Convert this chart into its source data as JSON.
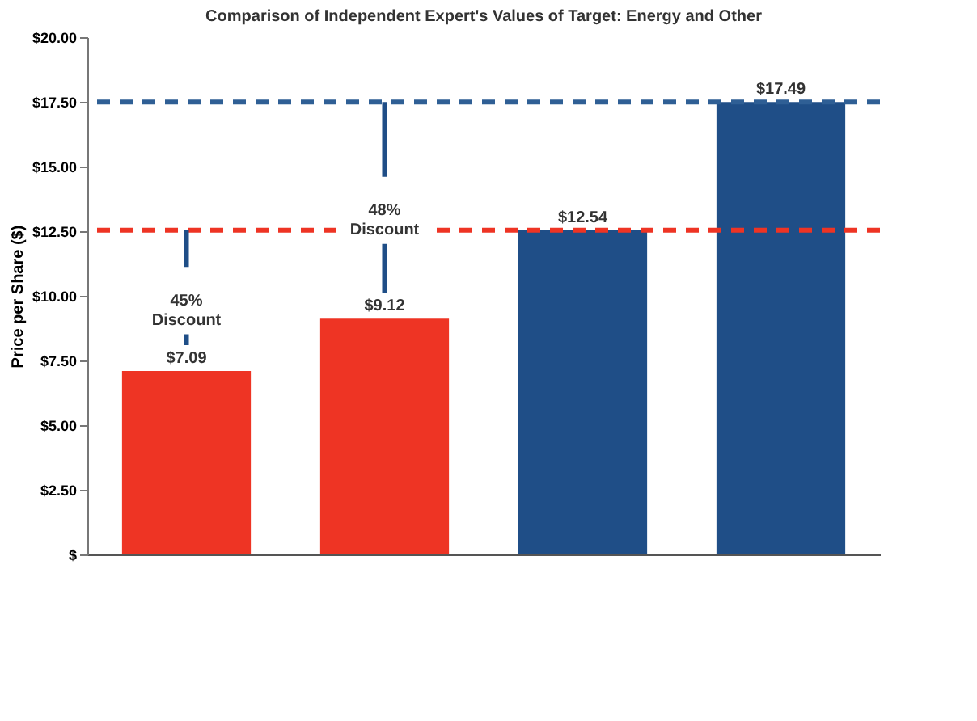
{
  "chart_data": {
    "type": "bar",
    "title": "Comparison of Independent Expert's Values of Target: Energy and Other",
    "ylabel": "Price per Share ($)",
    "categories": [
      null,
      null,
      null,
      null
    ],
    "values": [
      7.09,
      9.12,
      12.54,
      17.49
    ],
    "colors": [
      "#ee3424",
      "#ee3424",
      "#1f4e87",
      "#1f4e87"
    ],
    "value_labels": [
      "$7.09",
      "$9.12",
      "$12.54",
      "$17.49"
    ],
    "ylim": [
      0,
      20
    ],
    "yticks": [
      {
        "value": 0,
        "label": "$"
      },
      {
        "value": 2.5,
        "label": "$2.50"
      },
      {
        "value": 5,
        "label": "$5.00"
      },
      {
        "value": 7.5,
        "label": "$7.50"
      },
      {
        "value": 10,
        "label": "$10.00"
      },
      {
        "value": 12.5,
        "label": "$12.50"
      },
      {
        "value": 15,
        "label": "$15.00"
      },
      {
        "value": 17.5,
        "label": "$17.50"
      },
      {
        "value": 20,
        "label": "$20.00"
      }
    ],
    "ref_lines": [
      {
        "axis": "y",
        "value": 12.54,
        "color": "#ee3424",
        "line_style": "dashed"
      },
      {
        "axis": "y",
        "value": 17.49,
        "color": "#2f5f95",
        "line_style": "dashed"
      }
    ],
    "annotations": [
      "45% Discount",
      "48% Discount"
    ],
    "grid": false
  }
}
